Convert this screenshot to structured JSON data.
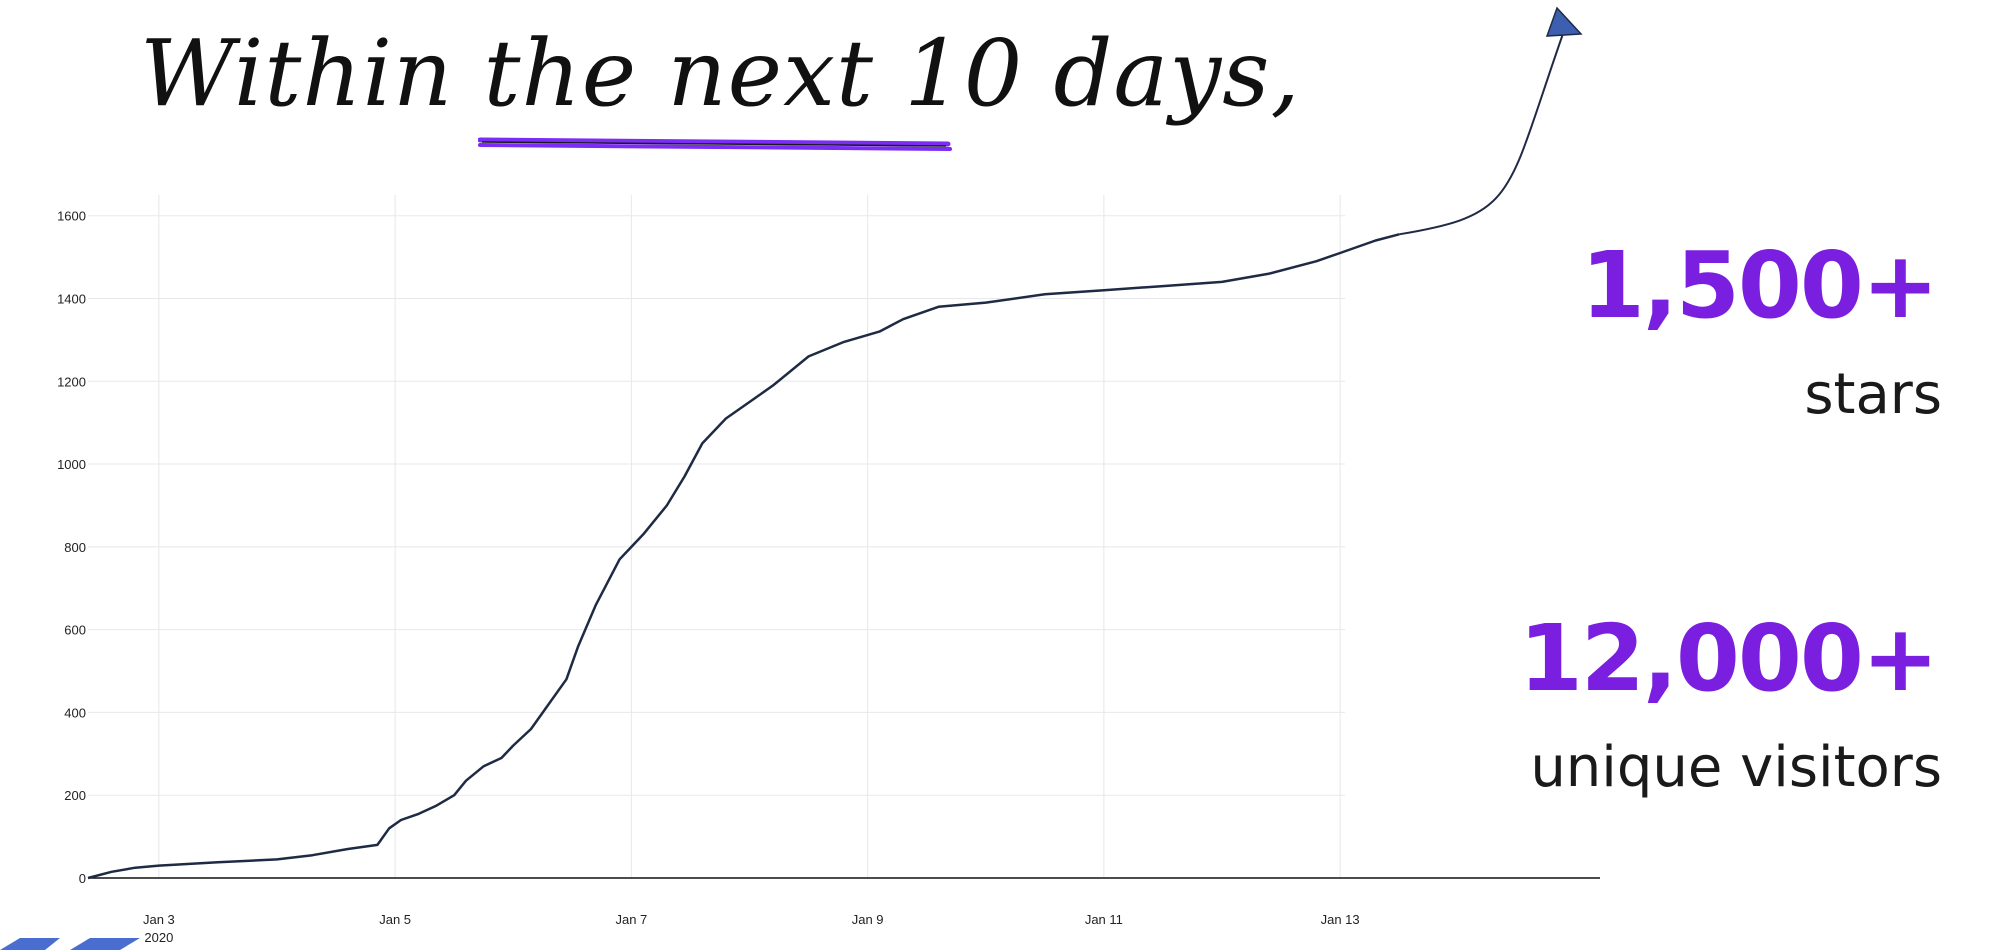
{
  "headline": {
    "text": "Within the next 10 days,",
    "underline_color": "#7b2cf5"
  },
  "stats": [
    {
      "number": "1,500+",
      "label": "stars"
    },
    {
      "number": "12,000+",
      "label": "unique visitors"
    }
  ],
  "colors": {
    "accent": "#7a1fe0",
    "line": "#1f2a44",
    "arrow_head": "#3d5fb0",
    "grid": "#e6e8ec"
  },
  "chart_data": {
    "type": "line",
    "title": "",
    "xlabel": "",
    "ylabel": "",
    "xlim": [
      2.4,
      15.2
    ],
    "ylim": [
      0,
      1650
    ],
    "grid": true,
    "legend": "none",
    "yticks": [
      0,
      200,
      400,
      600,
      800,
      1000,
      1200,
      1400,
      1600
    ],
    "xticks": [
      {
        "value": 3,
        "label": "Jan 3",
        "sublabel": "2020"
      },
      {
        "value": 5,
        "label": "Jan 5",
        "sublabel": ""
      },
      {
        "value": 7,
        "label": "Jan 7",
        "sublabel": ""
      },
      {
        "value": 9,
        "label": "Jan 9",
        "sublabel": ""
      },
      {
        "value": 11,
        "label": "Jan 11",
        "sublabel": ""
      },
      {
        "value": 13,
        "label": "Jan 13",
        "sublabel": ""
      }
    ],
    "series": [
      {
        "x": [
          2.4,
          2.6,
          2.8,
          3.0,
          3.5,
          4.0,
          4.3,
          4.6,
          4.85,
          4.95,
          5.05,
          5.2,
          5.35,
          5.5,
          5.6,
          5.75,
          5.9,
          6.0,
          6.15,
          6.3,
          6.45,
          6.55,
          6.7,
          6.9,
          7.1,
          7.3,
          7.45,
          7.6,
          7.8,
          8.0,
          8.2,
          8.5,
          8.8,
          9.1,
          9.3,
          9.6,
          10.0,
          10.5,
          11.0,
          11.5,
          12.0,
          12.4,
          12.8,
          13.0,
          13.3,
          13.5
        ],
        "y": [
          0,
          15,
          25,
          30,
          38,
          45,
          55,
          70,
          80,
          120,
          140,
          155,
          175,
          200,
          235,
          270,
          290,
          320,
          360,
          420,
          480,
          560,
          660,
          770,
          830,
          900,
          970,
          1050,
          1110,
          1150,
          1190,
          1260,
          1295,
          1320,
          1350,
          1380,
          1390,
          1410,
          1420,
          1430,
          1440,
          1460,
          1490,
          1510,
          1540,
          1555
        ]
      }
    ],
    "projection": "arrow curving upward beyond Jan 13"
  },
  "logo": {
    "name": "corner-logo-fragment"
  }
}
